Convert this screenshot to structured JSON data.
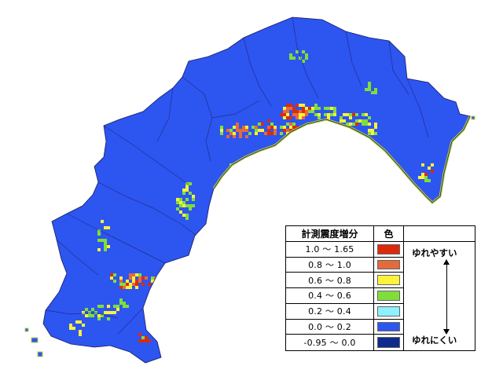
{
  "legend": {
    "header_range": "計測震度増分",
    "header_color": "色",
    "rows": [
      {
        "range": "1.0 ～ 1.65",
        "color": "#dd2a0c"
      },
      {
        "range": "0.8 ～ 1.0",
        "color": "#e56a3a"
      },
      {
        "range": "0.6 ～ 0.8",
        "color": "#fff23a"
      },
      {
        "range": "0.4 ～ 0.6",
        "color": "#80de3a"
      },
      {
        "range": "0.2 ～ 0.4",
        "color": "#8ff0ff"
      },
      {
        "range": "0.0 ～ 0.2",
        "color": "#2d55f0"
      },
      {
        "range": "-0.95 ～ 0.0",
        "color": "#0d2a8c"
      }
    ],
    "note_high": "ゆれやすい",
    "note_low": "ゆれにくい"
  },
  "map_colors": {
    "land": "#2d55f0",
    "border": "#1a1a60",
    "coast": "#b8d040"
  }
}
